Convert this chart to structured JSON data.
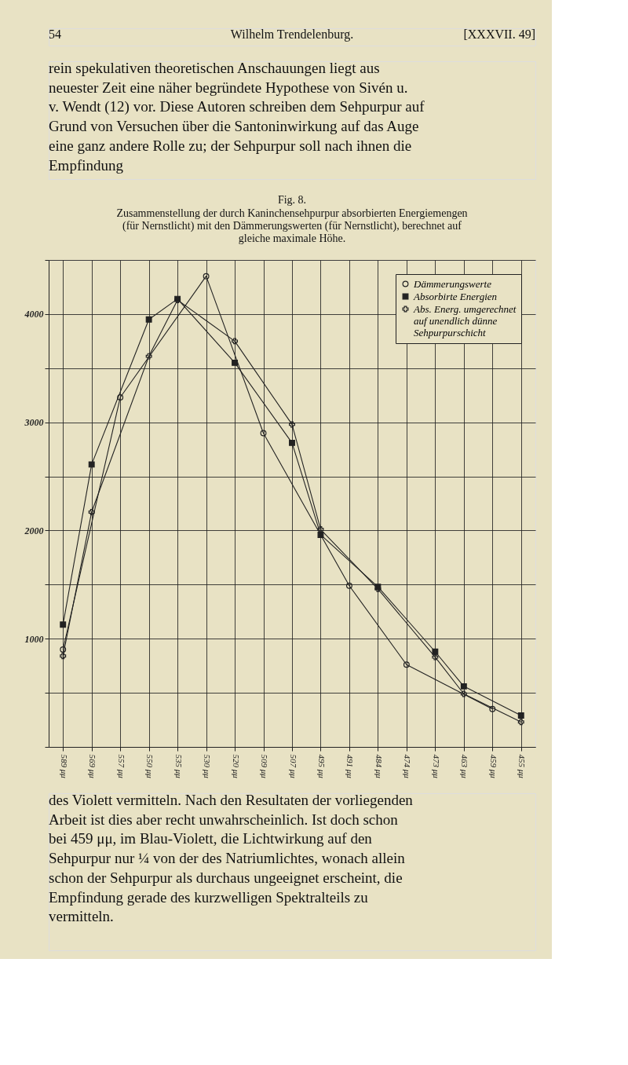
{
  "chart_data": {
    "type": "line",
    "title": "Fig. 8.",
    "subtitle": "Zusammenstellung der durch Kaninchensehpurpur absorbierten Energiemengen (für Nernstlicht) mit den Dämmerungswerten (für Nernstlicht), berechnet auf gleiche maximale Höhe.",
    "annotations": [
      "54",
      "Wilhelm Trendelenburg.",
      "[XXXVII. 49]",
      "rein spekulativen theoretischen Anschauungen liegt aus neuester Zeit eine näher begründete Hypothese von Sivén u. v. Wendt (12) vor. Diese Autoren schreiben dem Sehpurpur auf Grund von Versuchen über die Santoninwirkung auf das Auge eine ganz andere Rolle zu; der Sehpurpur soll nach ihnen die Empfindung",
      "des Violett vermitteln. Nach den Resultaten der vorliegenden Arbeit ist dies aber recht unwahrscheinlich. Ist doch schon bei 459 μμ, im Blau-Violett, die Lichtwirkung auf den Sehpurpur nur ¼ von der des Natriumlichtes, wonach allein schon der Sehpurpur als durchaus ungeeignet erscheint, die Empfindung gerade des kurzwelligen Spektralteils zu vermitteln."
    ],
    "categories": [
      "589 μμ",
      "569 μμ",
      "557 μμ",
      "550 μμ",
      "535 μμ",
      "530 μμ",
      "520 μμ",
      "509 μμ",
      "507 μμ",
      "495 μμ",
      "491 μμ",
      "484 μμ",
      "474 μμ",
      "473 μμ",
      "463 μμ",
      "459 μμ",
      "455 μμ"
    ],
    "series": [
      {
        "name": "Dämmerungswerte",
        "color": "#222222",
        "marker": "circle",
        "x": [
          "589 μμ",
          "557 μμ",
          "530 μμ",
          "509 μμ",
          "491 μμ",
          "474 μμ",
          "459 μμ"
        ],
        "values": [
          900,
          3230,
          4350,
          2900,
          1490,
          760,
          350
        ]
      },
      {
        "name": "Absorbirte Energien",
        "color": "#222222",
        "marker": "square",
        "x": [
          "589 μμ",
          "569 μμ",
          "550 μμ",
          "535 μμ",
          "520 μμ",
          "507 μμ",
          "495 μμ",
          "484 μμ",
          "473 μμ",
          "463 μμ",
          "455 μμ"
        ],
        "values": [
          1130,
          2610,
          3950,
          4140,
          3550,
          2810,
          1960,
          1480,
          880,
          560,
          290
        ]
      },
      {
        "name": "Abs. Energ. umgerechnet auf unendlich dünne Sehpurpurschicht",
        "color": "#222222",
        "marker": "cross",
        "x": [
          "589 μμ",
          "569 μμ",
          "550 μμ",
          "535 μμ",
          "520 μμ",
          "507 μμ",
          "495 μμ",
          "484 μμ",
          "473 μμ",
          "463 μμ",
          "455 μμ"
        ],
        "values": [
          840,
          2170,
          3610,
          4130,
          3750,
          2980,
          2010,
          1460,
          830,
          490,
          230
        ]
      }
    ],
    "ylim": [
      0,
      4500
    ],
    "yticks": [
      {
        "value": 0,
        "label": null
      },
      {
        "value": 500,
        "label": null
      },
      1000,
      {
        "value": 1500,
        "label": null
      },
      2000,
      {
        "value": 2500,
        "label": null
      },
      3000,
      {
        "value": 3500,
        "label": null
      },
      4000,
      {
        "value": 4500,
        "label": null
      }
    ],
    "grid": true,
    "legend": "top right",
    "line_style": "solid"
  }
}
